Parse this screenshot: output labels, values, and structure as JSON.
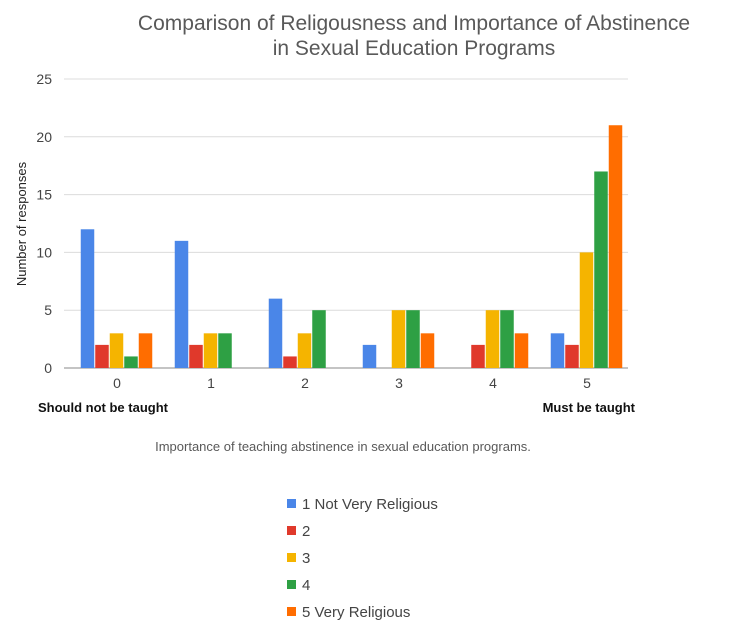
{
  "chart_data": {
    "type": "bar",
    "title_line1": "Comparison of Religousness and Importance of Abstinence",
    "title_line2": "in Sexual Education Programs",
    "xlabel": "Importance of teaching abstinence in sexual education programs.",
    "ylabel": "Number of responses",
    "categories": [
      "0",
      "1",
      "2",
      "3",
      "4",
      "5"
    ],
    "end_labels": {
      "left": "Should not be taught",
      "right": "Must be taught"
    },
    "ylim": [
      0,
      25
    ],
    "yticks": [
      0,
      5,
      10,
      15,
      20,
      25
    ],
    "grid": true,
    "legend_position": "bottom",
    "series": [
      {
        "name": "1 Not Very Religious",
        "color": "#4a86e8",
        "values": [
          12,
          11,
          6,
          2,
          0,
          3
        ]
      },
      {
        "name": "2",
        "color": "#e0392b",
        "values": [
          2,
          2,
          1,
          0,
          2,
          2
        ]
      },
      {
        "name": "3",
        "color": "#f5b400",
        "values": [
          3,
          3,
          3,
          5,
          5,
          10
        ]
      },
      {
        "name": "4",
        "color": "#2ea044",
        "values": [
          1,
          3,
          5,
          5,
          5,
          17
        ]
      },
      {
        "name": "5 Very Religious",
        "color": "#ff6d00",
        "values": [
          3,
          0,
          0,
          3,
          3,
          21
        ]
      }
    ]
  }
}
